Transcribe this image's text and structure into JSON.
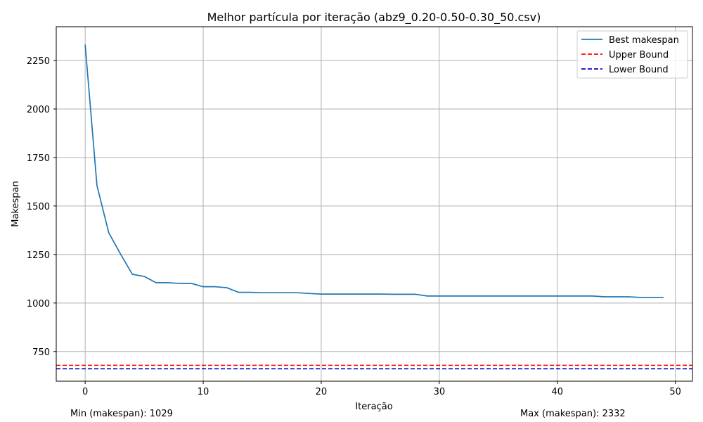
{
  "chart_data": {
    "type": "line",
    "title": "Melhor partícula por iteração (abz9_0.20-0.50-0.30_50.csv)",
    "xlabel": "Iteração",
    "ylabel": "Makespan",
    "xlim": [
      -2.45,
      51.45
    ],
    "ylim": [
      597,
      2424
    ],
    "xticks": [
      0,
      10,
      20,
      30,
      40,
      50
    ],
    "yticks": [
      750,
      1000,
      1250,
      1500,
      1750,
      2000,
      2250
    ],
    "grid": true,
    "legend_position": "top-right",
    "series": [
      {
        "name": "Best makespan",
        "color": "#1f77b4",
        "style": "solid",
        "x": [
          0,
          1,
          2,
          3,
          4,
          5,
          6,
          7,
          8,
          9,
          10,
          11,
          12,
          13,
          14,
          15,
          16,
          17,
          18,
          19,
          20,
          21,
          22,
          23,
          24,
          25,
          26,
          27,
          28,
          29,
          30,
          31,
          32,
          33,
          34,
          35,
          36,
          37,
          38,
          39,
          40,
          41,
          42,
          43,
          44,
          45,
          46,
          47,
          48,
          49
        ],
        "y": [
          2332,
          1605,
          1362,
          1252,
          1148,
          1137,
          1105,
          1105,
          1101,
          1101,
          1084,
          1084,
          1079,
          1055,
          1055,
          1053,
          1053,
          1053,
          1053,
          1049,
          1046,
          1046,
          1046,
          1046,
          1046,
          1046,
          1045,
          1045,
          1045,
          1036,
          1036,
          1036,
          1036,
          1036,
          1036,
          1036,
          1036,
          1036,
          1036,
          1036,
          1036,
          1036,
          1036,
          1036,
          1032,
          1032,
          1032,
          1029,
          1029,
          1029
        ]
      },
      {
        "name": "Upper Bound",
        "color": "#ff0000",
        "style": "dashed",
        "hline": 679
      },
      {
        "name": "Lower Bound",
        "color": "#0000cd",
        "style": "dashed",
        "hline": 661
      }
    ],
    "footer": {
      "min_text": "Min (makespan): 1029",
      "max_text": "Max (makespan): 2332"
    }
  }
}
